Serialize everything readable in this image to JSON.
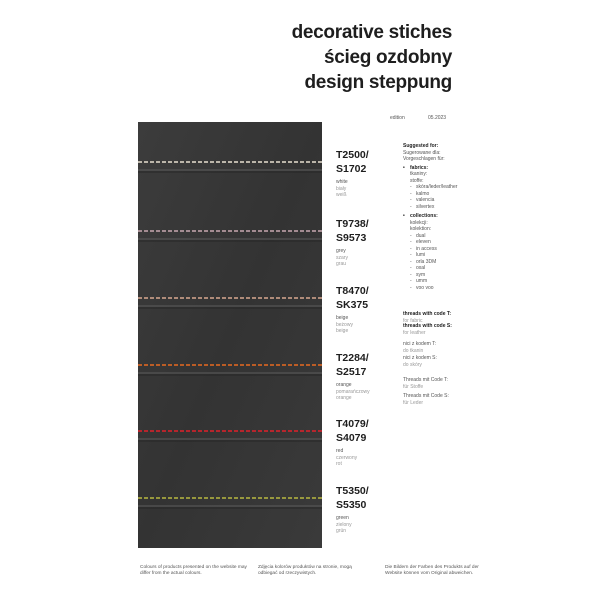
{
  "header": {
    "title_lines": [
      "decorative stiches",
      "ścieg ozdobny",
      "design steppung"
    ],
    "edition_label": "edition",
    "edition_date": "05.2023"
  },
  "swatches": [
    {
      "code_t": "T2500/",
      "code_s": "S1702",
      "names": [
        "white",
        "biały",
        "weiß"
      ],
      "color": "#e8e0d0"
    },
    {
      "code_t": "T9738/",
      "code_s": "S9573",
      "names": [
        "grey",
        "szary",
        "grau"
      ],
      "color": "#c8a8b0"
    },
    {
      "code_t": "T8470/",
      "code_s": "SK375",
      "names": [
        "beige",
        "beżowy",
        "beige"
      ],
      "color": "#d8a890"
    },
    {
      "code_t": "T2284/",
      "code_s": "S2517",
      "names": [
        "orange",
        "pomarańczowy",
        "orange"
      ],
      "color": "#e86a20"
    },
    {
      "code_t": "T4079/",
      "code_s": "S4079",
      "names": [
        "red",
        "czerwony",
        "rot"
      ],
      "color": "#e0202a"
    },
    {
      "code_t": "T5350/",
      "code_s": "S5350",
      "names": [
        "green",
        "zielony",
        "grün"
      ],
      "color": "#b8b840"
    }
  ],
  "suggested": {
    "heading": [
      "Suggested for:",
      "Sugerowane dla:",
      "Vorgeschlagen für:"
    ],
    "fabrics": {
      "heading": [
        "fabrics:",
        "tkaniny:",
        "stoffe:"
      ],
      "items": [
        "skóra/leder/leather",
        "kalmo",
        "valencia",
        "silvertex"
      ]
    },
    "collections": {
      "heading": [
        "collections:",
        "kolekcji:",
        "kolektion:"
      ],
      "items": [
        "dual",
        "eleven",
        "in access",
        "lumi",
        "orla 3DM",
        "oxal",
        "sym",
        "umm",
        "voo voo"
      ]
    }
  },
  "threads": [
    [
      "threads with code T:",
      "for fabric"
    ],
    [
      "threads with code S:",
      "for leather"
    ],
    [
      "nici z kodem T:",
      "do tkanin"
    ],
    [
      "nici z kodem S:",
      "do skóry"
    ],
    [
      "Threads mit Code T:",
      "für Stoffe"
    ],
    [
      "Threads mit Code S:",
      "für Leder"
    ]
  ],
  "footer": [
    "Colours of products presented on the website may differ from the actual colours.",
    "Zdjęcia kolorów produktów na stronie, mogą odbiegać od rzeczywistych.",
    "Die Bildern der Farben des Produkts auf der Website können vom Original abweichen."
  ]
}
